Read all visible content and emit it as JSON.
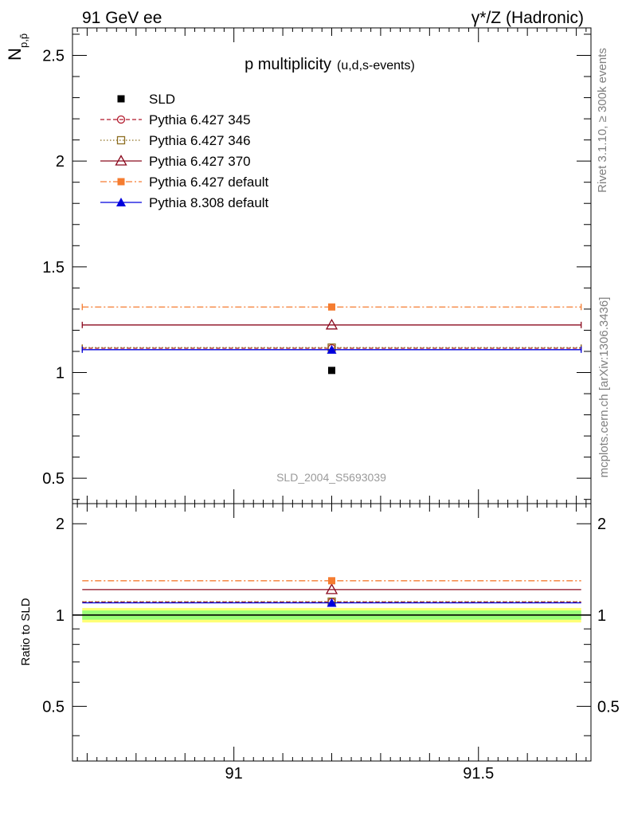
{
  "header": {
    "left": "91 GeV ee",
    "right": "γ*/Z (Hadronic)"
  },
  "side_text": {
    "rivet": "Rivet 3.1.10, ≥ 300k events",
    "mcplots": "mcplots.cern.ch [arXiv:1306.3436]"
  },
  "chart_data": [
    {
      "type": "scatter",
      "title": "p multiplicity",
      "subtitle": "(u,d,s-events)",
      "ylabel": "N",
      "ylabel_sub": "p,p̄",
      "watermark": "SLD_2004_S5693039",
      "xlim": [
        90.67,
        91.73
      ],
      "ylim": [
        0.38,
        2.63
      ],
      "x_ticks": [
        91,
        91.5
      ],
      "y_ticks": [
        0.5,
        1,
        1.5,
        2,
        2.5
      ],
      "y_tick_labels": [
        "0.5",
        "1",
        "1.5",
        "2",
        "2.5"
      ],
      "legend_position": "top-left",
      "series": [
        {
          "name": "SLD",
          "kind": "data",
          "x": 91.2,
          "y": 1.01,
          "xerr": [
            91.2,
            91.2
          ],
          "marker": "square-filled",
          "color": "#000000",
          "dash": "none"
        },
        {
          "name": "Pythia 6.427 345",
          "kind": "mc",
          "x": 91.2,
          "y": 1.115,
          "xerr": [
            90.69,
            91.71
          ],
          "marker": "circle-open",
          "color": "#b2182b",
          "dash": "5,3"
        },
        {
          "name": "Pythia 6.427 346",
          "kind": "mc",
          "x": 91.2,
          "y": 1.118,
          "xerr": [
            90.69,
            91.71
          ],
          "marker": "square-open",
          "color": "#8c6d1f",
          "dash": "1.5,2.5"
        },
        {
          "name": "Pythia 6.427 370",
          "kind": "mc",
          "x": 91.2,
          "y": 1.225,
          "xerr": [
            90.69,
            91.71
          ],
          "marker": "triangle-open",
          "color": "#8b0a1e",
          "dash": "none"
        },
        {
          "name": "Pythia 6.427 default",
          "kind": "mc",
          "x": 91.2,
          "y": 1.31,
          "xerr": [
            90.69,
            91.71
          ],
          "marker": "square-filled",
          "color": "#f57c30",
          "dash": "8,3,2,3"
        },
        {
          "name": "Pythia 8.308 default",
          "kind": "mc",
          "x": 91.2,
          "y": 1.108,
          "xerr": [
            90.69,
            91.71
          ],
          "marker": "triangle-filled",
          "color": "#0000dd",
          "dash": "none"
        }
      ]
    },
    {
      "type": "scatter",
      "title": "",
      "ylabel": "Ratio to SLD",
      "xlim": [
        90.67,
        91.73
      ],
      "ylim": [
        0.33,
        2.33
      ],
      "x_ticks": [
        91,
        91.5
      ],
      "x_tick_labels": [
        "91",
        "91.5"
      ],
      "y_ticks": [
        0.5,
        1,
        2
      ],
      "y_tick_labels": [
        "0.5",
        "1",
        "2"
      ],
      "reference_line": 1,
      "bands": [
        {
          "name": "2σ",
          "low": 0.945,
          "high": 1.055,
          "color": "#ffff77"
        },
        {
          "name": "1σ",
          "low": 0.965,
          "high": 1.035,
          "color": "#99ff77"
        }
      ],
      "band_x": [
        90.69,
        91.71
      ],
      "series": [
        {
          "name": "Pythia 6.427 345",
          "y": 1.104,
          "color": "#b2182b",
          "dash": "5,3",
          "marker": "circle-open"
        },
        {
          "name": "Pythia 6.427 346",
          "y": 1.107,
          "color": "#8c6d1f",
          "dash": "1.5,2.5",
          "marker": "square-open"
        },
        {
          "name": "Pythia 6.427 370",
          "y": 1.213,
          "color": "#8b0a1e",
          "dash": "none",
          "marker": "triangle-open"
        },
        {
          "name": "Pythia 6.427 default",
          "y": 1.297,
          "color": "#f57c30",
          "dash": "8,3,2,3",
          "marker": "square-filled"
        },
        {
          "name": "Pythia 8.308 default",
          "y": 1.097,
          "color": "#0000dd",
          "dash": "none",
          "marker": "triangle-filled"
        }
      ],
      "marker_x": 91.2
    }
  ]
}
